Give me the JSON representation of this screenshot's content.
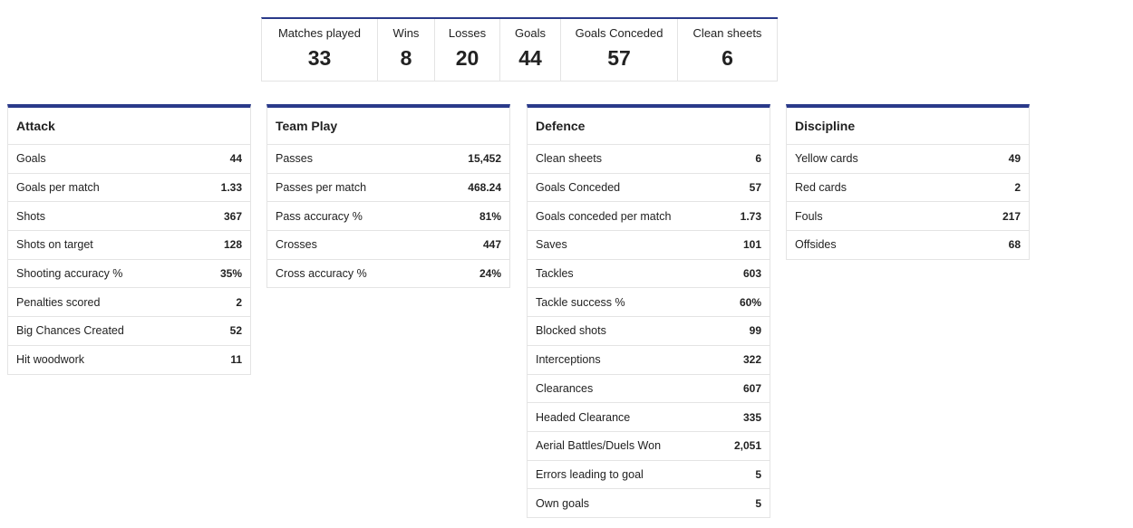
{
  "summary": [
    {
      "label": "Matches played",
      "value": "33"
    },
    {
      "label": "Wins",
      "value": "8"
    },
    {
      "label": "Losses",
      "value": "20"
    },
    {
      "label": "Goals",
      "value": "44"
    },
    {
      "label": "Goals Conceded",
      "value": "57"
    },
    {
      "label": "Clean sheets",
      "value": "6"
    }
  ],
  "cards": [
    {
      "title": "Attack",
      "rows": [
        [
          "Goals",
          "44"
        ],
        [
          "Goals per match",
          "1.33"
        ],
        [
          "Shots",
          "367"
        ],
        [
          "Shots on target",
          "128"
        ],
        [
          "Shooting accuracy %",
          "35%"
        ],
        [
          "Penalties scored",
          "2"
        ],
        [
          "Big Chances Created",
          "52"
        ],
        [
          "Hit woodwork",
          "11"
        ]
      ]
    },
    {
      "title": "Team Play",
      "rows": [
        [
          "Passes",
          "15,452"
        ],
        [
          "Passes per match",
          "468.24"
        ],
        [
          "Pass accuracy %",
          "81%"
        ],
        [
          "Crosses",
          "447"
        ],
        [
          "Cross accuracy %",
          "24%"
        ]
      ]
    },
    {
      "title": "Defence",
      "rows": [
        [
          "Clean sheets",
          "6"
        ],
        [
          "Goals Conceded",
          "57"
        ],
        [
          "Goals conceded per match",
          "1.73"
        ],
        [
          "Saves",
          "101"
        ],
        [
          "Tackles",
          "603"
        ],
        [
          "Tackle success %",
          "60%"
        ],
        [
          "Blocked shots",
          "99"
        ],
        [
          "Interceptions",
          "322"
        ],
        [
          "Clearances",
          "607"
        ],
        [
          "Headed Clearance",
          "335"
        ],
        [
          "Aerial Battles/Duels Won",
          "2,051"
        ],
        [
          "Errors leading to goal",
          "5"
        ],
        [
          "Own goals",
          "5"
        ]
      ]
    },
    {
      "title": "Discipline",
      "rows": [
        [
          "Yellow cards",
          "49"
        ],
        [
          "Red cards",
          "2"
        ],
        [
          "Fouls",
          "217"
        ],
        [
          "Offsides",
          "68"
        ]
      ]
    }
  ]
}
